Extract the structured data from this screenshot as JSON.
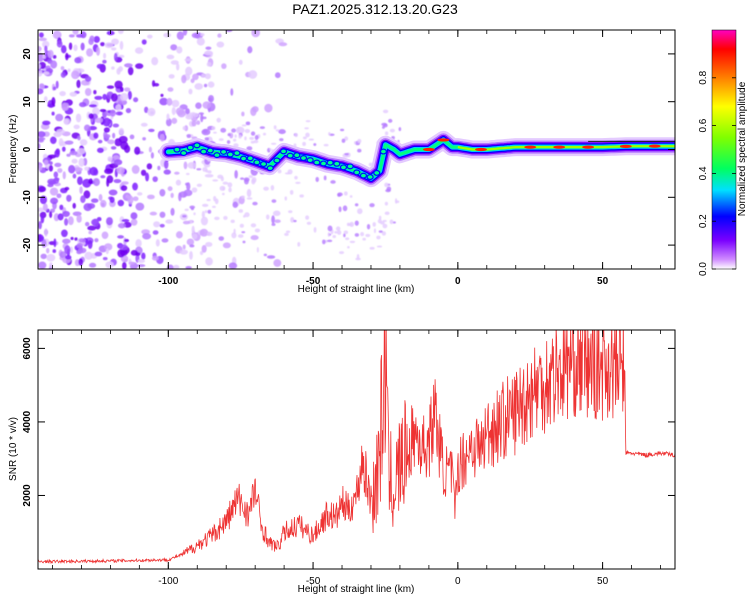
{
  "figure": {
    "title": "PAZ1.2025.312.13.20.G23"
  },
  "chart_data": [
    {
      "type": "heatmap",
      "name": "spectrogram",
      "xlabel": "Height of straight line (km)",
      "ylabel": "Frequency (Hz)",
      "xlim": [
        -145,
        75
      ],
      "ylim": [
        -25,
        25
      ],
      "xticks": [
        "-100",
        "-50",
        "0",
        "50"
      ],
      "xtick_values": [
        -100,
        -50,
        0,
        50
      ],
      "yticks": [
        "-20",
        "-10",
        "0",
        "10",
        "20"
      ],
      "ytick_values": [
        -20,
        -10,
        0,
        10,
        20
      ],
      "ridge_line": {
        "x": [
          -100,
          -95,
          -90,
          -85,
          -80,
          -75,
          -70,
          -65,
          -60,
          -55,
          -50,
          -45,
          -40,
          -35,
          -30,
          -27,
          -25,
          -22,
          -20,
          -15,
          -10,
          -5,
          -2,
          0,
          5,
          10,
          20,
          30,
          40,
          50,
          60,
          75
        ],
        "y": [
          -0.5,
          -0.3,
          0.5,
          -0.5,
          -0.8,
          -1.5,
          -2.5,
          -3.5,
          -0.5,
          -1.5,
          -2.0,
          -3.0,
          -3.5,
          -4.5,
          -6.0,
          -4.5,
          1.0,
          0.0,
          -1.0,
          0.0,
          0.0,
          2.0,
          0.5,
          0.5,
          0.0,
          0.0,
          0.5,
          0.5,
          0.5,
          0.5,
          0.7,
          0.7
        ]
      },
      "noise_region": {
        "x_from": -145,
        "x_to": -85,
        "description_value": "broadband noise"
      },
      "colorbar": {
        "label": "Normalized spectral amplitude",
        "range": [
          0,
          1
        ],
        "ticks": [
          "0.0",
          "0.2",
          "0.4",
          "0.6",
          "0.8"
        ],
        "tick_values": [
          0.0,
          0.2,
          0.4,
          0.6,
          0.8
        ],
        "colors": [
          "#ffffff",
          "#d08cff",
          "#7a00ff",
          "#0000ff",
          "#00e0ff",
          "#00ff60",
          "#80ff00",
          "#ffff00",
          "#ff8000",
          "#ff0000",
          "#ff00c0"
        ]
      }
    },
    {
      "type": "line",
      "name": "snr",
      "xlabel": "Height of straight line (km)",
      "ylabel": "SNR (10 * v/v)",
      "xlim": [
        -145,
        75
      ],
      "ylim": [
        0,
        6500
      ],
      "xticks": [
        "-100",
        "-50",
        "0",
        "50"
      ],
      "xtick_values": [
        -100,
        -50,
        0,
        50
      ],
      "yticks": [
        "2000",
        "4000",
        "6000"
      ],
      "ytick_values": [
        2000,
        4000,
        6000
      ],
      "color": "#ee3333",
      "series": [
        {
          "name": "SNR",
          "x": [
            -145,
            -120,
            -100,
            -95,
            -90,
            -85,
            -80,
            -76,
            -72,
            -70,
            -68,
            -65,
            -62,
            -60,
            -55,
            -50,
            -45,
            -42,
            -40,
            -38,
            -35,
            -33,
            -30,
            -28,
            -26,
            -25,
            -24,
            -22,
            -20,
            -18,
            -15,
            -12,
            -10,
            -8,
            -5,
            -2,
            -1,
            0,
            2,
            5,
            8,
            10,
            15,
            20,
            25,
            30,
            35,
            40,
            45,
            50,
            55,
            57.5,
            58,
            60,
            65,
            70,
            75
          ],
          "y": [
            200,
            220,
            250,
            400,
            650,
            900,
            1300,
            1900,
            1500,
            2200,
            1200,
            700,
            600,
            1000,
            1200,
            900,
            1500,
            1400,
            1800,
            1600,
            2000,
            3000,
            1800,
            2500,
            4200,
            6400,
            2600,
            2200,
            2800,
            3000,
            3700,
            3300,
            3400,
            4300,
            2700,
            2600,
            1500,
            2800,
            3000,
            3400,
            3300,
            3700,
            4000,
            4300,
            4800,
            5100,
            5400,
            5700,
            5500,
            5600,
            5500,
            5700,
            3150,
            3150,
            3100,
            3150,
            3100
          ]
        }
      ]
    }
  ]
}
